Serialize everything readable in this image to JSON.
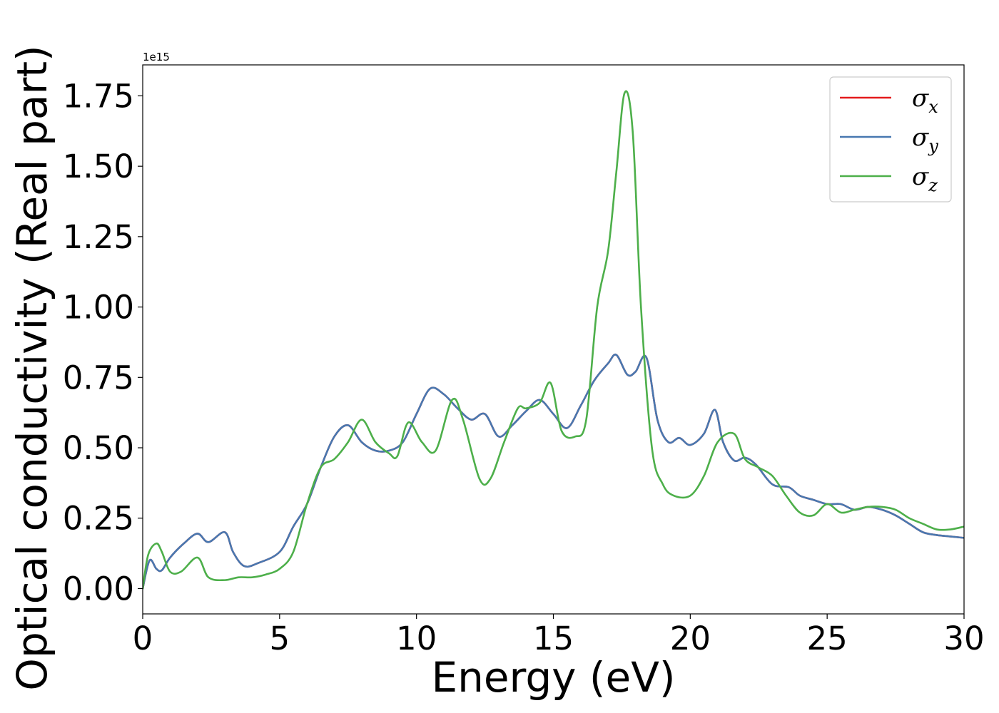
{
  "chart_data": {
    "type": "line",
    "xlabel": "Energy (eV)",
    "ylabel": "Optical conductivity (Real part)",
    "offset_text": "1e15",
    "xlim": [
      0,
      30
    ],
    "ylim": [
      -0.09,
      1.86
    ],
    "x_ticks": [
      0,
      5,
      10,
      15,
      20,
      25,
      30
    ],
    "x_tick_labels": [
      "0",
      "5",
      "10",
      "15",
      "20",
      "25",
      "30"
    ],
    "y_ticks": [
      0.0,
      0.25,
      0.5,
      0.75,
      1.0,
      1.25,
      1.5,
      1.75
    ],
    "y_tick_labels": [
      "0.00",
      "0.25",
      "0.50",
      "0.75",
      "1.00",
      "1.25",
      "1.50",
      "1.75"
    ],
    "grid": false,
    "legend_position": "top-right",
    "series": [
      {
        "name": "σx",
        "symbol": "σ",
        "subscript": "x",
        "color": "#e41a1c",
        "x": [
          0,
          0.25,
          0.5,
          0.7,
          1.0,
          1.5,
          2.0,
          2.4,
          3.0,
          3.3,
          3.7,
          4.2,
          5.0,
          5.5,
          6.0,
          6.5,
          7.0,
          7.5,
          8.0,
          8.5,
          9.0,
          9.5,
          10.0,
          10.5,
          11.0,
          11.5,
          12.0,
          12.5,
          13.0,
          13.5,
          14.0,
          14.5,
          15.0,
          15.5,
          16.0,
          16.5,
          17.0,
          17.3,
          17.7,
          18.0,
          18.4,
          18.8,
          19.2,
          19.6,
          20.0,
          20.5,
          20.9,
          21.2,
          21.6,
          22.0,
          22.4,
          23.0,
          23.6,
          24.0,
          24.5,
          25.0,
          25.5,
          26.0,
          26.5,
          27.0,
          27.5,
          28.0,
          28.5,
          29.0,
          29.5,
          30.0
        ],
        "y": [
          0.0,
          0.1,
          0.07,
          0.065,
          0.11,
          0.16,
          0.195,
          0.165,
          0.2,
          0.13,
          0.08,
          0.09,
          0.13,
          0.22,
          0.3,
          0.43,
          0.54,
          0.58,
          0.52,
          0.49,
          0.49,
          0.52,
          0.62,
          0.71,
          0.69,
          0.64,
          0.6,
          0.62,
          0.54,
          0.58,
          0.63,
          0.67,
          0.62,
          0.57,
          0.65,
          0.74,
          0.8,
          0.83,
          0.76,
          0.77,
          0.82,
          0.6,
          0.52,
          0.535,
          0.51,
          0.55,
          0.635,
          0.52,
          0.455,
          0.465,
          0.44,
          0.37,
          0.36,
          0.33,
          0.315,
          0.3,
          0.3,
          0.28,
          0.29,
          0.28,
          0.26,
          0.23,
          0.2,
          0.19,
          0.185,
          0.18
        ]
      },
      {
        "name": "σy",
        "symbol": "σ",
        "subscript": "y",
        "color": "#4878b0",
        "x": [
          0,
          0.25,
          0.5,
          0.7,
          1.0,
          1.5,
          2.0,
          2.4,
          3.0,
          3.3,
          3.7,
          4.2,
          5.0,
          5.5,
          6.0,
          6.5,
          7.0,
          7.5,
          8.0,
          8.5,
          9.0,
          9.5,
          10.0,
          10.5,
          11.0,
          11.5,
          12.0,
          12.5,
          13.0,
          13.5,
          14.0,
          14.5,
          15.0,
          15.5,
          16.0,
          16.5,
          17.0,
          17.3,
          17.7,
          18.0,
          18.4,
          18.8,
          19.2,
          19.6,
          20.0,
          20.5,
          20.9,
          21.2,
          21.6,
          22.0,
          22.4,
          23.0,
          23.6,
          24.0,
          24.5,
          25.0,
          25.5,
          26.0,
          26.5,
          27.0,
          27.5,
          28.0,
          28.5,
          29.0,
          29.5,
          30.0
        ],
        "y": [
          0.0,
          0.1,
          0.07,
          0.065,
          0.11,
          0.16,
          0.195,
          0.165,
          0.2,
          0.13,
          0.08,
          0.09,
          0.13,
          0.22,
          0.3,
          0.43,
          0.54,
          0.58,
          0.52,
          0.49,
          0.49,
          0.52,
          0.62,
          0.71,
          0.69,
          0.64,
          0.6,
          0.62,
          0.54,
          0.58,
          0.63,
          0.67,
          0.62,
          0.57,
          0.65,
          0.74,
          0.8,
          0.83,
          0.76,
          0.77,
          0.82,
          0.6,
          0.52,
          0.535,
          0.51,
          0.55,
          0.635,
          0.52,
          0.455,
          0.465,
          0.44,
          0.37,
          0.36,
          0.33,
          0.315,
          0.3,
          0.3,
          0.28,
          0.29,
          0.28,
          0.26,
          0.23,
          0.2,
          0.19,
          0.185,
          0.18
        ]
      },
      {
        "name": "σz",
        "symbol": "σ",
        "subscript": "z",
        "color": "#4daf4a",
        "x": [
          0,
          0.2,
          0.5,
          0.7,
          1.0,
          1.4,
          2.0,
          2.4,
          3.0,
          3.5,
          4.0,
          4.5,
          5.0,
          5.5,
          6.0,
          6.5,
          7.0,
          7.5,
          8.0,
          8.5,
          9.0,
          9.3,
          9.7,
          10.2,
          10.7,
          11.3,
          11.7,
          12.3,
          12.7,
          13.2,
          13.7,
          14.0,
          14.5,
          14.9,
          15.3,
          15.8,
          16.2,
          16.6,
          17.0,
          17.3,
          17.6,
          17.9,
          18.2,
          18.6,
          19.0,
          19.4,
          20.0,
          20.5,
          21.0,
          21.6,
          22.0,
          22.5,
          23.0,
          23.5,
          24.0,
          24.5,
          25.0,
          25.5,
          26.0,
          26.5,
          27.0,
          27.5,
          28.0,
          28.5,
          29.0,
          29.5,
          30.0
        ],
        "y": [
          0.0,
          0.12,
          0.16,
          0.13,
          0.06,
          0.06,
          0.11,
          0.04,
          0.03,
          0.04,
          0.04,
          0.05,
          0.07,
          0.13,
          0.3,
          0.43,
          0.46,
          0.52,
          0.6,
          0.52,
          0.48,
          0.47,
          0.59,
          0.52,
          0.49,
          0.67,
          0.6,
          0.39,
          0.39,
          0.52,
          0.64,
          0.64,
          0.66,
          0.73,
          0.56,
          0.54,
          0.6,
          1.0,
          1.2,
          1.48,
          1.76,
          1.62,
          1.0,
          0.5,
          0.37,
          0.33,
          0.33,
          0.4,
          0.52,
          0.55,
          0.46,
          0.43,
          0.4,
          0.33,
          0.27,
          0.26,
          0.3,
          0.27,
          0.28,
          0.29,
          0.29,
          0.28,
          0.25,
          0.23,
          0.21,
          0.21,
          0.22
        ]
      }
    ]
  }
}
